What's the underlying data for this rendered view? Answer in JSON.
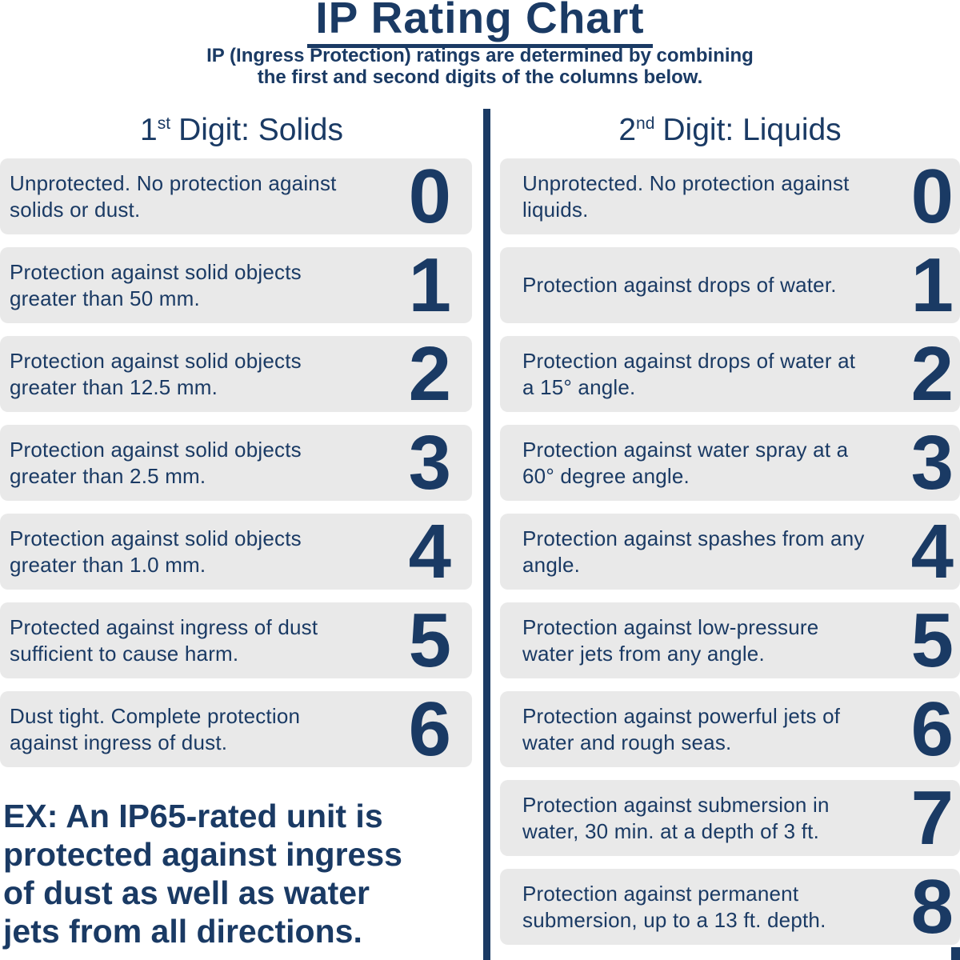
{
  "title": "IP Rating Chart",
  "subtitle": {
    "line1": "IP (Ingress Protection) ratings are determined by combining",
    "line2": "the first and second digits of the columns below."
  },
  "solids": {
    "heading": {
      "number": "1",
      "ordinal": "st",
      "label": "Digit: Solids"
    },
    "rows": [
      {
        "digit": "0",
        "line1": "Unprotected. No protection against",
        "line2": "solids or dust."
      },
      {
        "digit": "1",
        "line1": "Protection against solid objects",
        "line2": "greater than 50 mm."
      },
      {
        "digit": "2",
        "line1": "Protection against solid objects",
        "line2": "greater than 12.5 mm."
      },
      {
        "digit": "3",
        "line1": "Protection against solid objects",
        "line2": "greater than 2.5 mm."
      },
      {
        "digit": "4",
        "line1": "Protection against solid objects",
        "line2": "greater than 1.0 mm."
      },
      {
        "digit": "5",
        "line1": "Protected against ingress of dust",
        "line2": "sufficient to cause harm."
      },
      {
        "digit": "6",
        "line1": "Dust tight. Complete protection",
        "line2": "against ingress of dust."
      }
    ]
  },
  "liquids": {
    "heading": {
      "number": "2",
      "ordinal": "nd",
      "label": "Digit: Liquids"
    },
    "rows": [
      {
        "digit": "0",
        "line1": "Unprotected. No protection against",
        "line2": "liquids."
      },
      {
        "digit": "1",
        "line1": "Protection against drops of water.",
        "line2": ""
      },
      {
        "digit": "2",
        "line1": "Protection against drops of water at",
        "line2": "a 15° angle."
      },
      {
        "digit": "3",
        "line1": "Protection against water spray at a",
        "line2": "60° degree angle."
      },
      {
        "digit": "4",
        "line1": "Protection against spashes from any",
        "line2": "angle."
      },
      {
        "digit": "5",
        "line1": "Protection against low-pressure",
        "line2": "water jets from any angle."
      },
      {
        "digit": "6",
        "line1": "Protection against powerful jets of",
        "line2": "water and rough seas."
      },
      {
        "digit": "7",
        "line1": "Protection against submersion in",
        "line2": "water, 30 min. at a depth of 3 ft."
      },
      {
        "digit": "8",
        "line1": "Protection against permanent",
        "line2": "submersion, up to a 13 ft. depth."
      }
    ]
  },
  "example": {
    "line1": "EX: An IP65-rated unit is",
    "line2": "protected against ingress",
    "line3": "of dust as well as water",
    "line4": "jets from all directions."
  },
  "colors": {
    "navy": "#1a3a64",
    "row_bg": "#e9e9e9"
  }
}
